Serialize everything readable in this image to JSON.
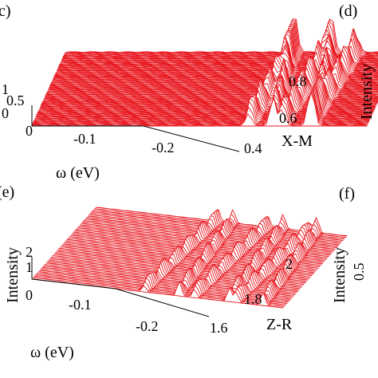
{
  "chart_data": [
    {
      "panel": "(c)",
      "type": "area",
      "view": "3d-waterfall",
      "title": "",
      "line_color": "#e8141c",
      "fill_color": "#ffffff",
      "xlabel": "ω (eV)",
      "ylabel": "X-M",
      "zlabel": "",
      "x_ticks": [
        "-0.1",
        "-0.2"
      ],
      "y_ticks": [
        "0.4",
        "0.6",
        "0.8"
      ],
      "z_ticks": [
        "0",
        "0.5",
        "1"
      ],
      "xlim": [
        0,
        -0.3
      ],
      "ylim": [
        0.4,
        0.9
      ],
      "zlim": [
        0,
        1
      ],
      "grid": false,
      "legend": "none",
      "n_traces": 50,
      "peaks_x": [
        -0.2,
        -0.21,
        -0.23,
        -0.245,
        -0.255
      ],
      "peak_heights_max": 1.0
    },
    {
      "panel": "(e)",
      "type": "area",
      "view": "3d-waterfall",
      "title": "",
      "line_color": "#e8141c",
      "fill_color": "#ffffff",
      "xlabel": "ω (eV)",
      "ylabel": "Z-R",
      "zlabel": "Intensity",
      "x_ticks": [
        "-0.1",
        "-0.2"
      ],
      "y_ticks": [
        "1.6",
        "1.8",
        "2"
      ],
      "z_ticks": [
        "0",
        "1",
        "2"
      ],
      "xlim": [
        0,
        -0.3
      ],
      "ylim": [
        1.6,
        2.1
      ],
      "zlim": [
        0,
        2
      ],
      "grid": false,
      "legend": "none",
      "n_traces": 50,
      "peaks_x": [
        -0.14,
        -0.17,
        -0.2,
        -0.23,
        -0.25,
        -0.27
      ],
      "peak_heights_max": 2.0
    }
  ],
  "partial_panels": [
    {
      "label": "(d)",
      "zlabel": "Intensity"
    },
    {
      "label": "(f)",
      "zlabel": "Intensity",
      "z_ticks": [
        "0.5"
      ]
    }
  ],
  "stray_marks": [
    "c)",
    "(e)"
  ]
}
